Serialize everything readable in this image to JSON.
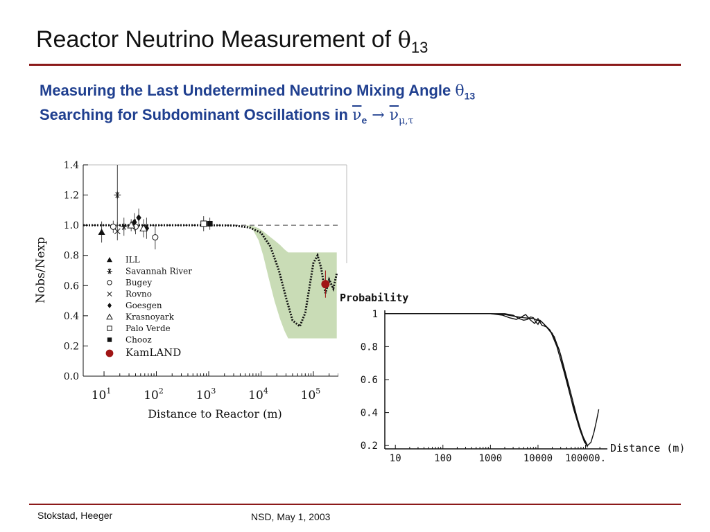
{
  "slide": {
    "title_main": "Reactor Neutrino Measurement of ",
    "title_theta": "θ",
    "title_sub": "13",
    "subtitle1_text": "Measuring the Last Undetermined Neutrino Mixing Angle ",
    "subtitle1_theta": "θ",
    "subtitle1_sub": "13",
    "subtitle2_text": "Searching for Subdominant Oscillations in ",
    "subtitle2_nu1": "ν",
    "subtitle2_sub1": "e",
    "subtitle2_arrow": " → ",
    "subtitle2_nu2": "ν",
    "subtitle2_sub2": "μ,τ",
    "footer_left": "Stokstad, Heeger",
    "footer_center": "NSD, May 1, 2003"
  },
  "chart_data": [
    {
      "type": "scatter",
      "title": "",
      "xlabel": "Distance to Reactor (m)",
      "ylabel": "Nobs/Nexp",
      "xscale": "log",
      "xlim": [
        4,
        300000
      ],
      "ylim": [
        0.0,
        1.4
      ],
      "xticks": [
        "10^1",
        "10^2",
        "10^3",
        "10^4",
        "10^5"
      ],
      "xtick_values": [
        10,
        100,
        1000,
        10000,
        100000
      ],
      "yticks": [
        "0.0",
        "0.2",
        "0.4",
        "0.6",
        "0.8",
        "1.0",
        "1.2",
        "1.4"
      ],
      "ytick_values": [
        0.0,
        0.2,
        0.4,
        0.6,
        0.8,
        1.0,
        1.2,
        1.4
      ],
      "reference_line": 1.0,
      "legend_position": "lower-left",
      "colors": {
        "kamland": "#a01515",
        "band": "#c9dcb6",
        "markers": "#111111"
      },
      "series": [
        {
          "name": "ILL",
          "marker": "triangle-filled",
          "points": [
            {
              "x": 9,
              "y": 0.955,
              "err": 0.07
            }
          ]
        },
        {
          "name": "Savannah River",
          "marker": "asterisk",
          "points": [
            {
              "x": 18,
              "y": 1.2,
              "err": 0.2
            },
            {
              "x": 24,
              "y": 0.99,
              "err": 0.06
            }
          ]
        },
        {
          "name": "Bugey",
          "marker": "circle-open",
          "points": [
            {
              "x": 15,
              "y": 0.99,
              "err": 0.04
            },
            {
              "x": 40,
              "y": 0.99,
              "err": 0.05
            },
            {
              "x": 95,
              "y": 0.92,
              "err": 0.08
            }
          ]
        },
        {
          "name": "Rovno",
          "marker": "cross",
          "points": [
            {
              "x": 18,
              "y": 0.96,
              "err": 0.06
            }
          ]
        },
        {
          "name": "Goesgen",
          "marker": "diamond-filled",
          "points": [
            {
              "x": 38,
              "y": 1.02,
              "err": 0.06
            },
            {
              "x": 46,
              "y": 1.05,
              "err": 0.06
            },
            {
              "x": 65,
              "y": 0.98,
              "err": 0.07
            }
          ]
        },
        {
          "name": "Krasnoyark",
          "marker": "triangle-open",
          "points": [
            {
              "x": 33,
              "y": 1.0,
              "err": 0.04
            },
            {
              "x": 57,
              "y": 0.98,
              "err": 0.06
            }
          ]
        },
        {
          "name": "Palo Verde",
          "marker": "square-open",
          "points": [
            {
              "x": 800,
              "y": 1.01,
              "err": 0.05
            }
          ]
        },
        {
          "name": "Chooz",
          "marker": "square-filled",
          "points": [
            {
              "x": 1050,
              "y": 1.01,
              "err": 0.04
            }
          ]
        },
        {
          "name": "KamLAND",
          "marker": "circle-filled-red",
          "points": [
            {
              "x": 170000,
              "y": 0.61,
              "err": 0.09
            }
          ]
        }
      ],
      "curve": {
        "x": [
          4,
          100,
          1000,
          3000,
          6000,
          10000,
          15000,
          22000,
          30000,
          40000,
          55000,
          70000,
          85000,
          100000,
          120000,
          140000,
          170000,
          200000,
          240000,
          280000
        ],
        "y": [
          1.0,
          1.0,
          1.0,
          0.998,
          0.985,
          0.95,
          0.86,
          0.7,
          0.52,
          0.37,
          0.33,
          0.42,
          0.6,
          0.75,
          0.8,
          0.72,
          0.55,
          0.64,
          0.58,
          0.68
        ]
      },
      "band": {
        "x": [
          5000,
          7000,
          9000,
          11000,
          14000,
          18000,
          23000,
          28000,
          33000,
          40000,
          280000
        ],
        "upper": [
          1.0,
          0.995,
          0.98,
          0.96,
          0.93,
          0.9,
          0.87,
          0.84,
          0.82,
          0.82,
          0.82
        ],
        "lower": [
          1.0,
          0.97,
          0.9,
          0.8,
          0.65,
          0.5,
          0.38,
          0.3,
          0.25,
          0.25,
          0.25
        ]
      }
    },
    {
      "type": "line",
      "title": "",
      "ylabel": "Probability",
      "xlabel": "Distance (m)",
      "xscale": "log",
      "xlim": [
        6,
        220000
      ],
      "ylim": [
        0.18,
        1.02
      ],
      "xticks": [
        "10",
        "100",
        "1000",
        "10000",
        "100000"
      ],
      "xtick_values": [
        10,
        100,
        1000,
        10000,
        100000
      ],
      "yticks": [
        "1",
        "0.8",
        "0.6",
        "0.4",
        "0.2"
      ],
      "ytick_values": [
        1,
        0.8,
        0.6,
        0.4,
        0.2
      ],
      "series": [
        {
          "x": [
            6,
            500,
            1000,
            2000,
            3000,
            5000,
            8000,
            12000,
            18000,
            25000,
            35000,
            50000,
            70000,
            90000,
            110000,
            130000,
            150000,
            170000,
            190000
          ],
          "y": [
            1.0,
            1.0,
            1.0,
            0.995,
            0.985,
            0.975,
            0.97,
            0.95,
            0.9,
            0.8,
            0.65,
            0.48,
            0.34,
            0.25,
            0.2,
            0.22,
            0.28,
            0.35,
            0.42
          ]
        },
        {
          "x": [
            6,
            1000,
            1800,
            2500,
            3500,
            4500,
            5500,
            7000,
            8500,
            10000,
            12000,
            15000,
            20000,
            28000,
            40000,
            55000,
            75000,
            95000,
            110000
          ],
          "y": [
            1.0,
            1.0,
            0.99,
            0.975,
            0.965,
            0.98,
            0.995,
            0.96,
            0.94,
            0.97,
            0.93,
            0.92,
            0.88,
            0.78,
            0.6,
            0.43,
            0.3,
            0.22,
            0.2
          ]
        },
        {
          "x": [
            6,
            2000,
            3000,
            4000,
            5000,
            6000,
            7000,
            8000,
            9000,
            10000,
            11000,
            13000,
            16000,
            22000,
            30000,
            45000,
            65000,
            90000,
            110000
          ],
          "y": [
            1.0,
            1.0,
            0.99,
            0.97,
            0.96,
            0.965,
            0.98,
            0.975,
            0.95,
            0.935,
            0.96,
            0.94,
            0.91,
            0.86,
            0.75,
            0.56,
            0.38,
            0.24,
            0.19
          ]
        }
      ]
    }
  ]
}
